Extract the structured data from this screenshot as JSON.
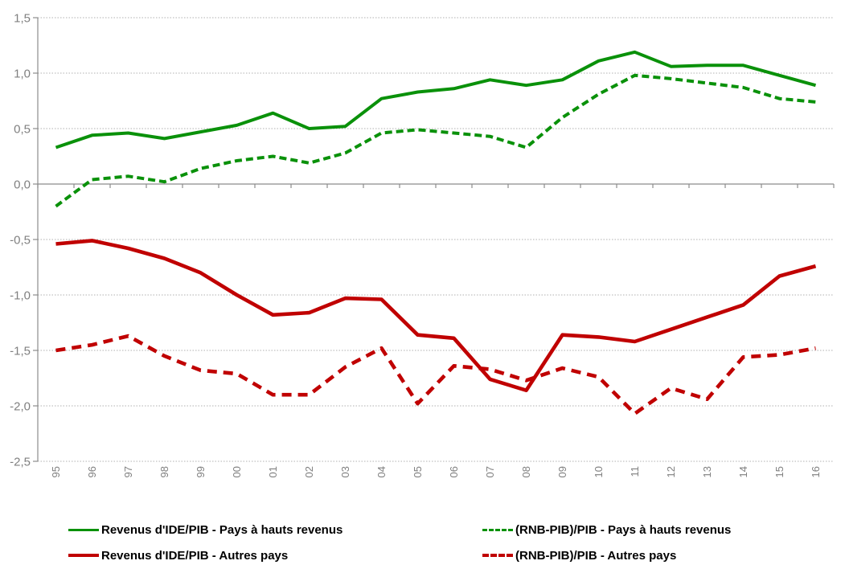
{
  "chart_data": {
    "type": "line",
    "title": "",
    "xlabel": "",
    "ylabel": "",
    "categories": [
      "95",
      "96",
      "97",
      "98",
      "99",
      "00",
      "01",
      "02",
      "03",
      "04",
      "05",
      "06",
      "07",
      "08",
      "09",
      "10",
      "11",
      "12",
      "13",
      "14",
      "15",
      "16"
    ],
    "y_axis": {
      "min": -2.5,
      "max": 1.5,
      "tick_step": 0.5,
      "ticks": [
        {
          "label": "1,5",
          "value": 1.5
        },
        {
          "label": "1,0",
          "value": 1.0
        },
        {
          "label": "0,5",
          "value": 0.5
        },
        {
          "label": "0,0",
          "value": 0.0
        },
        {
          "label": "-0,5",
          "value": -0.5
        },
        {
          "label": "-1,0",
          "value": -1.0
        },
        {
          "label": "-1,5",
          "value": -1.5
        },
        {
          "label": "-2,0",
          "value": -2.0
        },
        {
          "label": "-2,5",
          "value": -2.5
        }
      ]
    },
    "grid": "dotted-horizontal",
    "legend_position": "bottom-two-columns",
    "series": [
      {
        "name": "Revenus d'IDE/PIB - Pays à hauts revenus",
        "color": "#0a910a",
        "line_style": "solid",
        "values": [
          0.33,
          0.44,
          0.46,
          0.41,
          0.47,
          0.53,
          0.64,
          0.5,
          0.52,
          0.77,
          0.83,
          0.86,
          0.94,
          0.89,
          0.94,
          1.11,
          1.19,
          1.06,
          1.07,
          1.07,
          0.98,
          0.89
        ]
      },
      {
        "name": "(RNB-PIB)/PIB - Pays à hauts revenus",
        "color": "#0a910a",
        "line_style": "dashed",
        "values": [
          -0.2,
          0.04,
          0.07,
          0.02,
          0.14,
          0.21,
          0.25,
          0.19,
          0.28,
          0.46,
          0.49,
          0.46,
          0.43,
          0.33,
          0.6,
          0.81,
          0.98,
          0.95,
          0.91,
          0.87,
          0.77,
          0.74
        ]
      },
      {
        "name": "Revenus d'IDE/PIB - Autres pays",
        "color": "#c00000",
        "line_style": "solid",
        "values": [
          -0.54,
          -0.51,
          -0.58,
          -0.67,
          -0.8,
          -1.0,
          -1.18,
          -1.16,
          -1.03,
          -1.04,
          -1.36,
          -1.39,
          -1.76,
          -1.86,
          -1.36,
          -1.38,
          -1.42,
          -1.31,
          -1.2,
          -1.09,
          -0.83,
          -0.74
        ]
      },
      {
        "name": "(RNB-PIB)/PIB - Autres pays",
        "color": "#c00000",
        "line_style": "dashed",
        "values": [
          -1.5,
          -1.45,
          -1.37,
          -1.55,
          -1.68,
          -1.71,
          -1.9,
          -1.9,
          -1.65,
          -1.48,
          -1.98,
          -1.64,
          -1.67,
          -1.77,
          -1.66,
          -1.74,
          -2.07,
          -1.84,
          -1.94,
          -1.56,
          -1.54,
          -1.48
        ]
      }
    ]
  },
  "colors": {
    "background": "#ffffff",
    "green_series": "#0a910a",
    "red_series": "#c00000",
    "axis_line": "#8c8c8c",
    "gridline": "#b0b0b0",
    "tick_label": "#808080",
    "legend_text": "#000000"
  }
}
